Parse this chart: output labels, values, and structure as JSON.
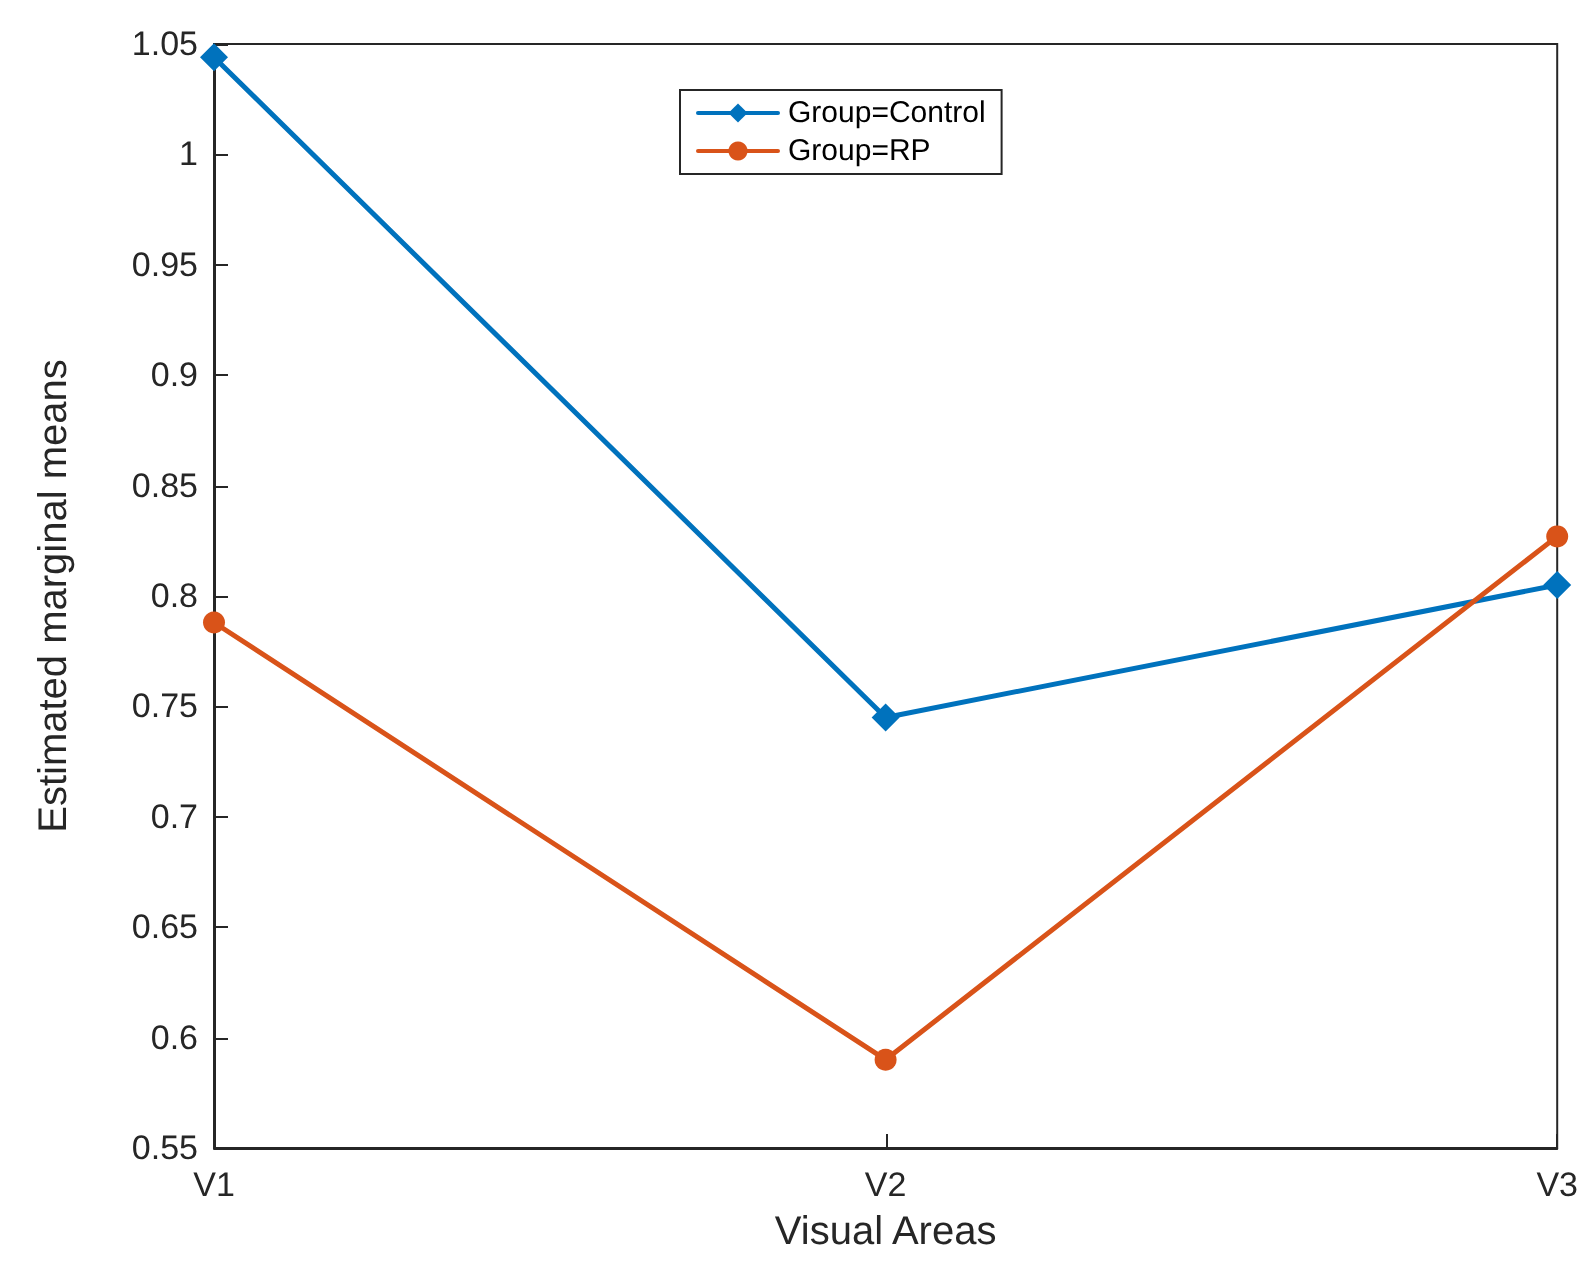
{
  "chart_data": {
    "type": "line",
    "xlabel": "Visual Areas",
    "ylabel": "Estimated marginal means",
    "categories": [
      "V1",
      "V2",
      "V3"
    ],
    "series": [
      {
        "name": "Group=Control",
        "color": "#0072bd",
        "marker": "diamond",
        "values": [
          1.044,
          0.745,
          0.805
        ]
      },
      {
        "name": "Group=RP",
        "color": "#d95319",
        "marker": "circle",
        "values": [
          0.788,
          0.59,
          0.827
        ]
      }
    ],
    "ylim": [
      0.55,
      1.05
    ],
    "yticks": [
      0.55,
      0.6,
      0.65,
      0.7,
      0.75,
      0.8,
      0.85,
      0.9,
      0.95,
      1,
      1.05
    ],
    "grid": false,
    "legend": "top",
    "line_style": "solid"
  }
}
